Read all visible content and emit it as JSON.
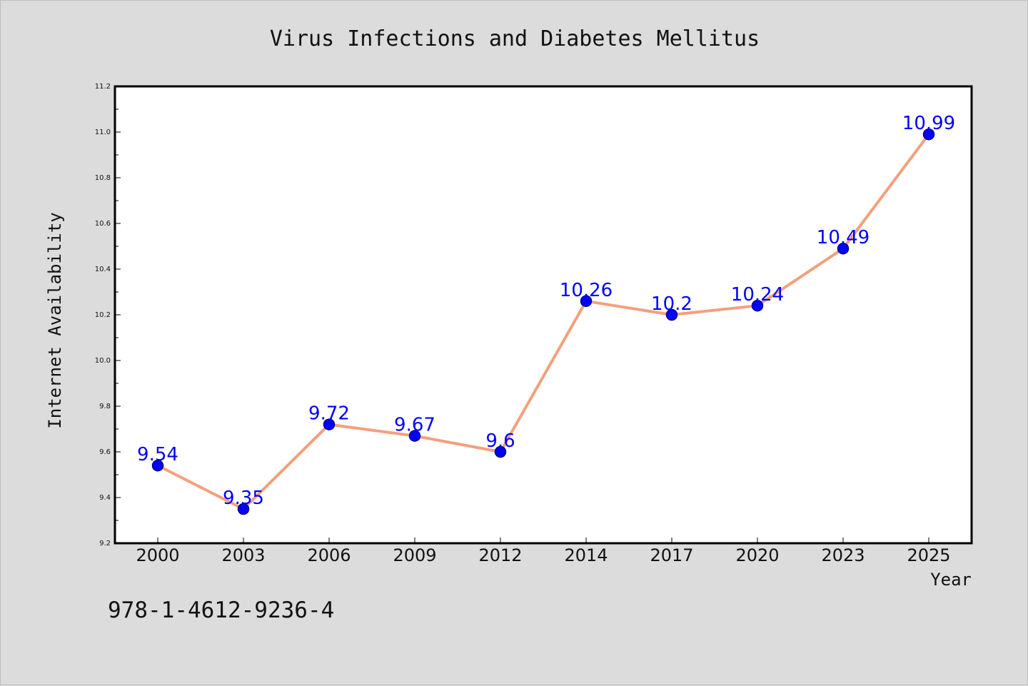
{
  "chart_data": {
    "type": "line",
    "title": "Virus Infections and Diabetes Mellitus",
    "xlabel": "Year",
    "ylabel": "Internet Availability",
    "categories": [
      "2000",
      "2003",
      "2006",
      "2009",
      "2012",
      "2014",
      "2017",
      "2020",
      "2023",
      "2025"
    ],
    "values": [
      9.54,
      9.35,
      9.72,
      9.67,
      9.6,
      10.26,
      10.2,
      10.24,
      10.49,
      10.99
    ],
    "data_labels": [
      "9.54",
      "9.35",
      "9.72",
      "9.67",
      "9.6",
      "10.26",
      "10.2",
      "10.24",
      "10.49",
      "10.99"
    ],
    "ylim": [
      9.2,
      11.2
    ],
    "yticks": [
      "9.2",
      "9.4",
      "9.6",
      "9.8",
      "10.0",
      "10.2",
      "10.4",
      "10.6",
      "10.8",
      "11.0",
      "11.2"
    ],
    "grid": false,
    "colors": {
      "line": "#f4a07c",
      "marker": "#0000ff",
      "data_label": "#0000ff",
      "background": "#dcdcdc",
      "plot_background": "#ffffff"
    }
  },
  "annotation": {
    "isbn": "978-1-4612-9236-4"
  }
}
